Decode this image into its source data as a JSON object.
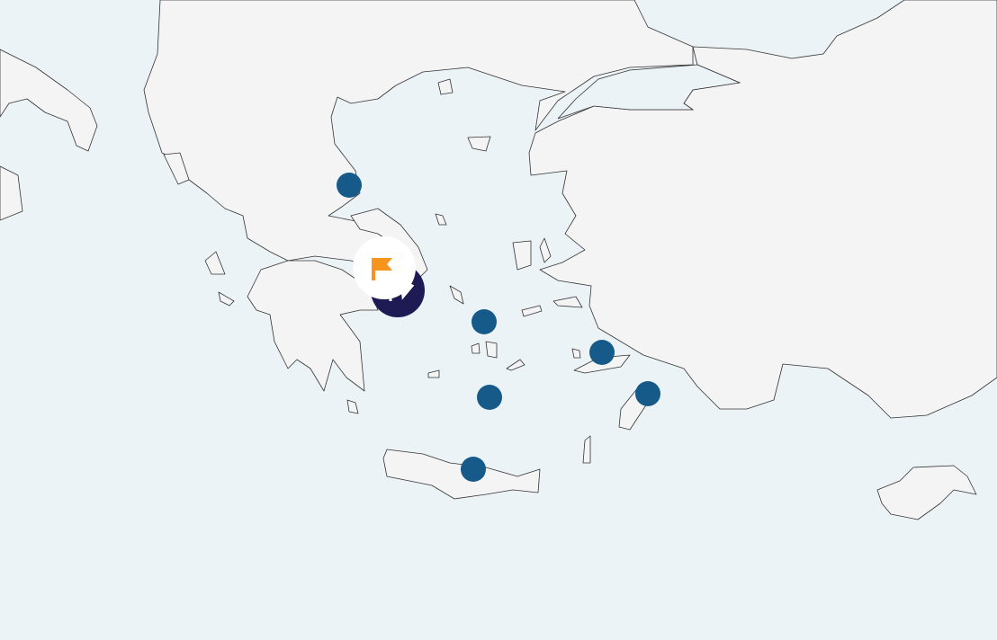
{
  "map": {
    "colors": {
      "sea": "#ebf3f7",
      "land": "#f4f4f4",
      "border": "#333333",
      "marker": "#165a8a",
      "selected_marker": "#1e1b54",
      "popup": "#ffffff",
      "flag": "#f7941d"
    },
    "markers": [
      {
        "id": "marker-1",
        "type": "location-dot"
      },
      {
        "id": "marker-2",
        "type": "location-dot"
      },
      {
        "id": "marker-3",
        "type": "location-dot"
      },
      {
        "id": "marker-4",
        "type": "location-dot"
      },
      {
        "id": "marker-5",
        "type": "location-dot"
      },
      {
        "id": "marker-6",
        "type": "location-dot"
      }
    ],
    "selected": {
      "type": "selected-location",
      "icon": "flag-icon"
    }
  }
}
